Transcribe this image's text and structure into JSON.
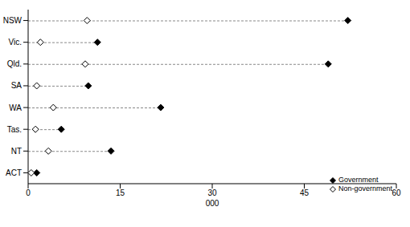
{
  "chart_data": {
    "type": "dot",
    "orientation": "horizontal",
    "xlabel": "000",
    "categories": [
      "NSW",
      "Vic.",
      "Qld.",
      "SA",
      "WA",
      "Tas.",
      "NT",
      "ACT"
    ],
    "series": [
      {
        "name": "Government",
        "color": "#000000",
        "marker": "diamond",
        "values": [
          52.1,
          11.3,
          48.9,
          9.8,
          21.6,
          5.4,
          13.5,
          1.4
        ]
      },
      {
        "name": "Non-government",
        "color": "#000000",
        "marker": "open_diamond",
        "values": [
          9.6,
          2.0,
          9.3,
          1.4,
          4.1,
          1.2,
          3.3,
          0.5
        ]
      }
    ],
    "xlim": [
      0,
      60
    ],
    "xticks": [
      0,
      15,
      30,
      45,
      60
    ],
    "line_style": "dashed",
    "legend": "lower right",
    "grid": false
  }
}
